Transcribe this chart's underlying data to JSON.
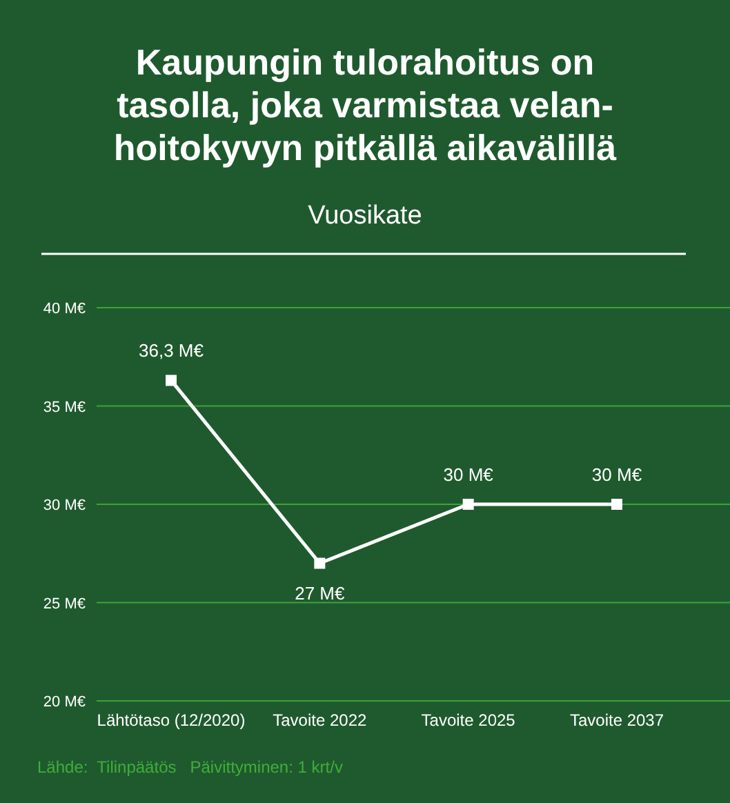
{
  "chart_data": {
    "type": "line",
    "title": "Kaupungin tulorahoitus on\ntasolla, joka varmistaa velan-\nhoitokyvyn pitkällä aikavälillä",
    "subtitle": "Vuosikate",
    "categories": [
      "Lähtötaso (12/2020)",
      "Tavoite 2022",
      "Tavoite 2025",
      "Tavoite 2037"
    ],
    "series": [
      {
        "color": "#ffffff",
        "values": [
          36.3,
          27,
          30,
          30
        ],
        "value_labels": [
          "36,3 M€",
          "27 M€",
          "30 M€",
          "30 M€"
        ]
      }
    ],
    "ylim": [
      20,
      40
    ],
    "yticks": [
      {
        "value": 20,
        "label": "20 M€"
      },
      {
        "value": 25,
        "label": "25 M€"
      },
      {
        "value": 30,
        "label": "30 M€"
      },
      {
        "value": 35,
        "label": "35 M€"
      },
      {
        "value": 40,
        "label": "40 M€"
      }
    ],
    "grid": "y",
    "marker": "square",
    "line_style": "solid",
    "annotations": [
      "Lähde:  Tilinpäätös   Päivittyminen: 1 krt/v"
    ]
  }
}
